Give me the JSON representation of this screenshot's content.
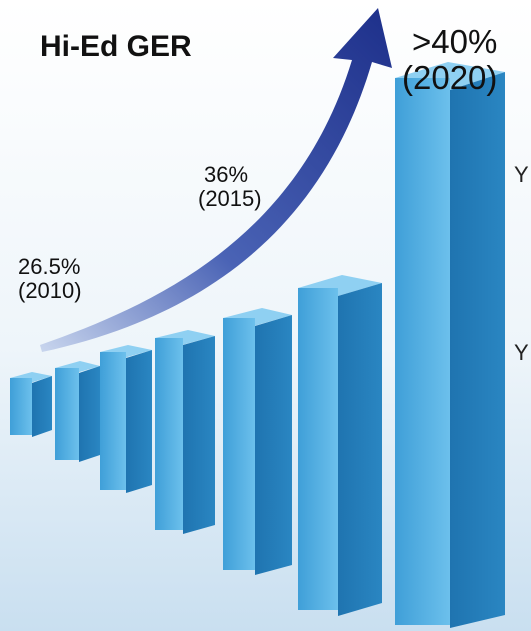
{
  "title": "Hi-Ed GER",
  "annotations": [
    {
      "value": "26.5%",
      "year": "(2010)"
    },
    {
      "value": "36%",
      "year": "(2015)"
    },
    {
      "value": ">40%",
      "year": "(2020)"
    }
  ]
}
